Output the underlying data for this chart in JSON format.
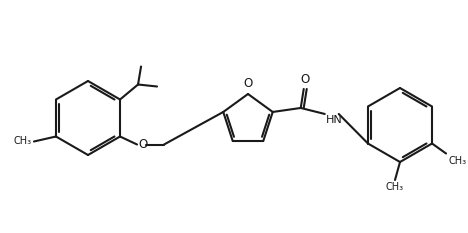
{
  "bg_color": "#ffffff",
  "line_color": "#1a1a1a",
  "line_width": 1.5,
  "figure_width": 4.68,
  "figure_height": 2.33,
  "dpi": 100,
  "xlim": [
    0,
    468
  ],
  "ylim": [
    0,
    233
  ]
}
